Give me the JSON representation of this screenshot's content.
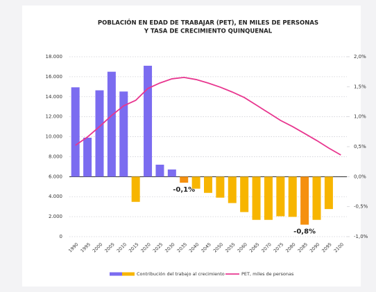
{
  "chart_data": {
    "type": "bar_line",
    "title": [
      "POBLACIÓN EN EDAD DE TRABAJAR (PET), EN MILES DE PERSONAS",
      "Y TASA DE CRECIMIENTO QUINQUENAL"
    ],
    "categories": [
      "1990",
      "1995",
      "2000",
      "2005",
      "2010",
      "2015",
      "2020",
      "2025",
      "2030",
      "2035",
      "2040",
      "2045",
      "2050",
      "2055",
      "2060",
      "2065",
      "2070",
      "2075",
      "2080",
      "2085",
      "2090",
      "2095",
      "2100"
    ],
    "series": [
      {
        "name": "Contribución del trabajo al crecimiento",
        "type": "bar",
        "axis": "y2",
        "color": "#7b6cf0",
        "negative_color": "#f7b500",
        "highlight_color": "#f5900f",
        "values": [
          1.49,
          0.65,
          1.44,
          1.75,
          1.42,
          -0.42,
          1.85,
          0.2,
          0.12,
          -0.1,
          -0.2,
          -0.27,
          -0.35,
          -0.44,
          -0.59,
          -0.72,
          -0.72,
          -0.66,
          -0.67,
          -0.8,
          -0.72,
          -0.54,
          null
        ]
      },
      {
        "name": "PET, miles de personas",
        "type": "line",
        "color": "#e8368f",
        "values": [
          9140,
          9970,
          11010,
          12120,
          13090,
          13640,
          14820,
          15370,
          15790,
          15930,
          15720,
          15370,
          14960,
          14470,
          13920,
          13160,
          12400,
          11630,
          11010,
          10320,
          9620,
          8860,
          8170
        ]
      }
    ],
    "annotations": [
      {
        "x": "2035",
        "text": "-0,1%"
      },
      {
        "x": "2085",
        "text": "-0,8%"
      }
    ],
    "ylim": [
      0,
      18000
    ],
    "yticks": [
      0,
      {
        "value": 2000,
        "label": "2.000"
      },
      {
        "value": 4000,
        "label": "4.000"
      },
      {
        "value": 6000,
        "label": "6.000"
      },
      {
        "value": 8000,
        "label": "8.000"
      },
      {
        "value": 10000,
        "label": "10.000"
      },
      {
        "value": 12000,
        "label": "12.000"
      },
      {
        "value": 14000,
        "label": "14.000"
      },
      {
        "value": 16000,
        "label": "16.000"
      },
      {
        "value": 18000,
        "label": "18.000"
      }
    ],
    "y2lim": [
      -1,
      2
    ],
    "y2ticks": [
      {
        "value": -1,
        "label": "-1,0%"
      },
      {
        "value": -0.5,
        "label": "-0,5%"
      },
      {
        "value": 0,
        "label": "0,0%"
      },
      {
        "value": 0.5,
        "label": "0,5%"
      },
      {
        "value": 1,
        "label": "1,0%"
      },
      {
        "value": 1.5,
        "label": "1,5%"
      },
      {
        "value": 2,
        "label": "2,0%"
      }
    ],
    "grid": true
  }
}
